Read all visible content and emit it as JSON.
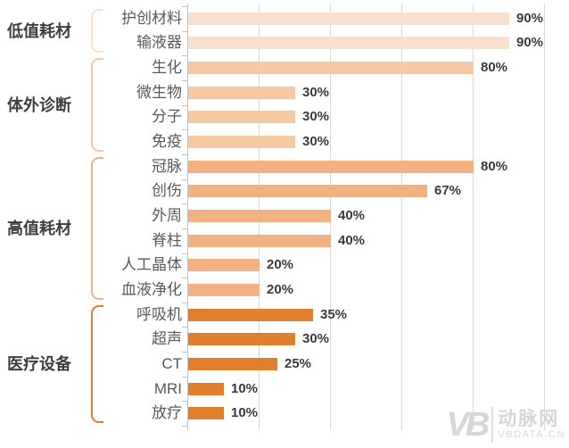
{
  "chart_data": {
    "type": "bar",
    "orientation": "horizontal",
    "title": "",
    "xlabel": "",
    "ylabel": "",
    "xlim": [
      0,
      100
    ],
    "value_suffix": "%",
    "grid": true,
    "axis_ticks_pct": [
      20,
      40,
      60,
      80,
      100
    ],
    "groups": [
      {
        "label": "低值耗材",
        "color": "#f9e0cd",
        "items": [
          {
            "label": "护创材料",
            "value": 90
          },
          {
            "label": "输液器",
            "value": 90
          }
        ]
      },
      {
        "label": "体外诊断",
        "color": "#f5c9a4",
        "items": [
          {
            "label": "生化",
            "value": 80
          },
          {
            "label": "微生物",
            "value": 30
          },
          {
            "label": "分子",
            "value": 30
          },
          {
            "label": "免疫",
            "value": 30
          }
        ]
      },
      {
        "label": "高值耗材",
        "color": "#f1b183",
        "items": [
          {
            "label": "冠脉",
            "value": 80
          },
          {
            "label": "创伤",
            "value": 67
          },
          {
            "label": "外周",
            "value": 40
          },
          {
            "label": "脊柱",
            "value": 40
          },
          {
            "label": "人工晶体",
            "value": 20
          },
          {
            "label": "血液净化",
            "value": 20
          }
        ]
      },
      {
        "label": "医疗设备",
        "color": "#e0802e",
        "items": [
          {
            "label": "呼吸机",
            "value": 35
          },
          {
            "label": "超声",
            "value": 30
          },
          {
            "label": "CT",
            "value": 25
          },
          {
            "label": "MRI",
            "value": 10
          },
          {
            "label": "放疗",
            "value": 10
          }
        ]
      }
    ]
  },
  "colors": {
    "gridline": "#d9d9d9",
    "axis": "#c3c3c3",
    "group_label": "#3f3f3f",
    "item_label": "#595959",
    "value_label": "#3b3b3b",
    "watermark": "#d6d6d6"
  },
  "watermark": {
    "logo": "VB",
    "name": "动脉网",
    "site": "VBDATA.CN"
  }
}
